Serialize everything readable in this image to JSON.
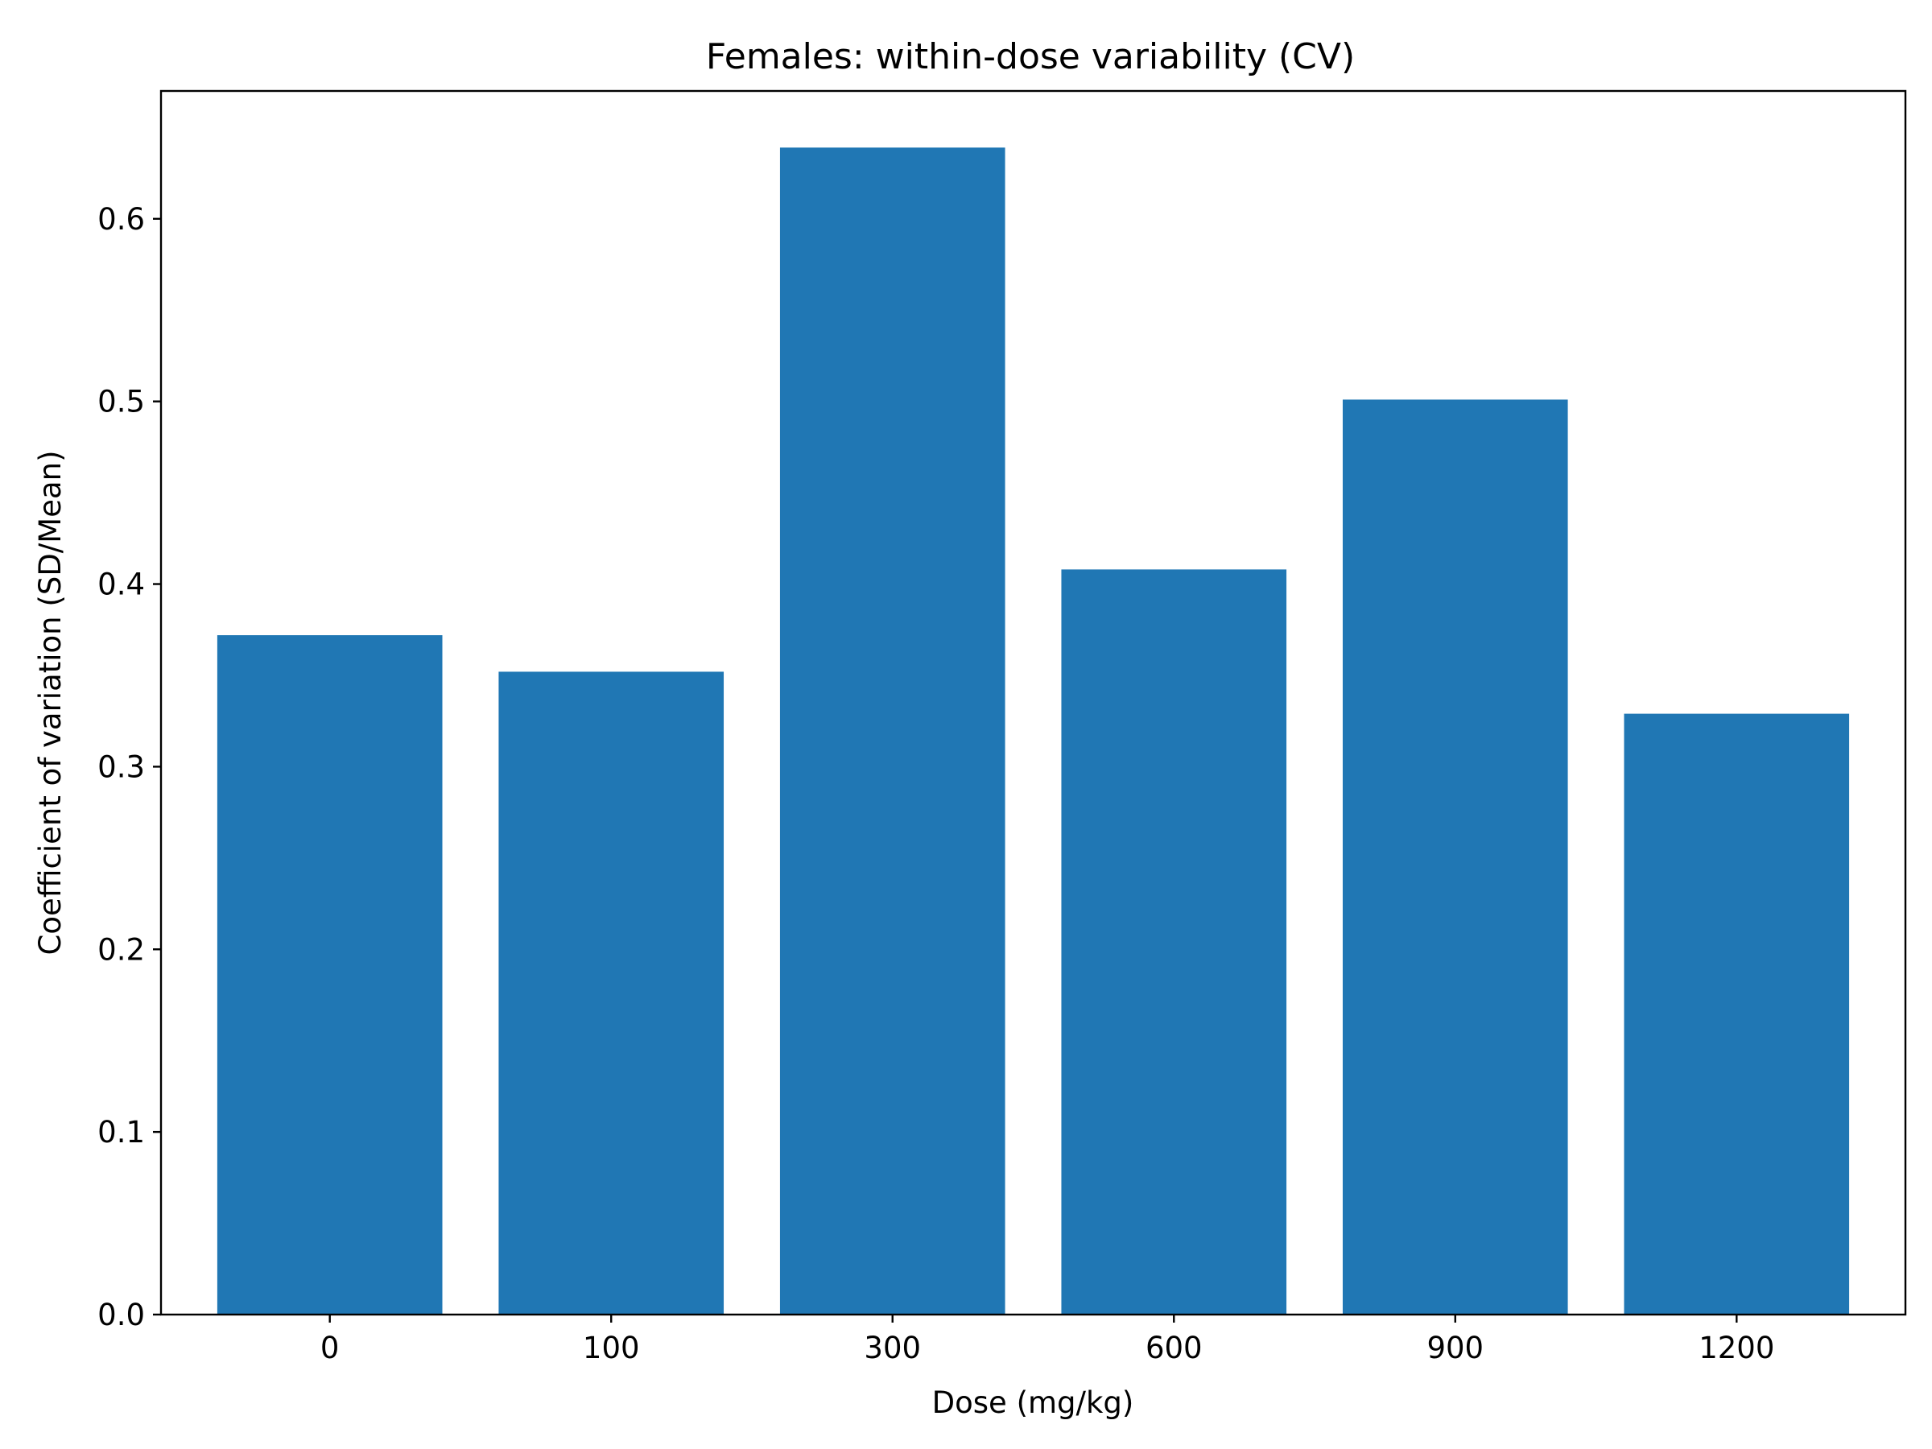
{
  "chart_data": {
    "type": "bar",
    "title": "Females: within-dose variability (CV)",
    "xlabel": "Dose (mg/kg)",
    "ylabel": "Coefficient of variation (SD/Mean)",
    "categories": [
      "0",
      "100",
      "300",
      "600",
      "900",
      "1200"
    ],
    "values": [
      0.372,
      0.352,
      0.639,
      0.408,
      0.501,
      0.329
    ],
    "ylim": [
      0,
      0.67
    ],
    "yticks": [
      0.0,
      0.1,
      0.2,
      0.3,
      0.4,
      0.5,
      0.6
    ],
    "ytick_labels": [
      "0.0",
      "0.1",
      "0.2",
      "0.3",
      "0.4",
      "0.5",
      "0.6"
    ],
    "bar_color": "#2077b4",
    "grid": false,
    "legend": "none"
  }
}
